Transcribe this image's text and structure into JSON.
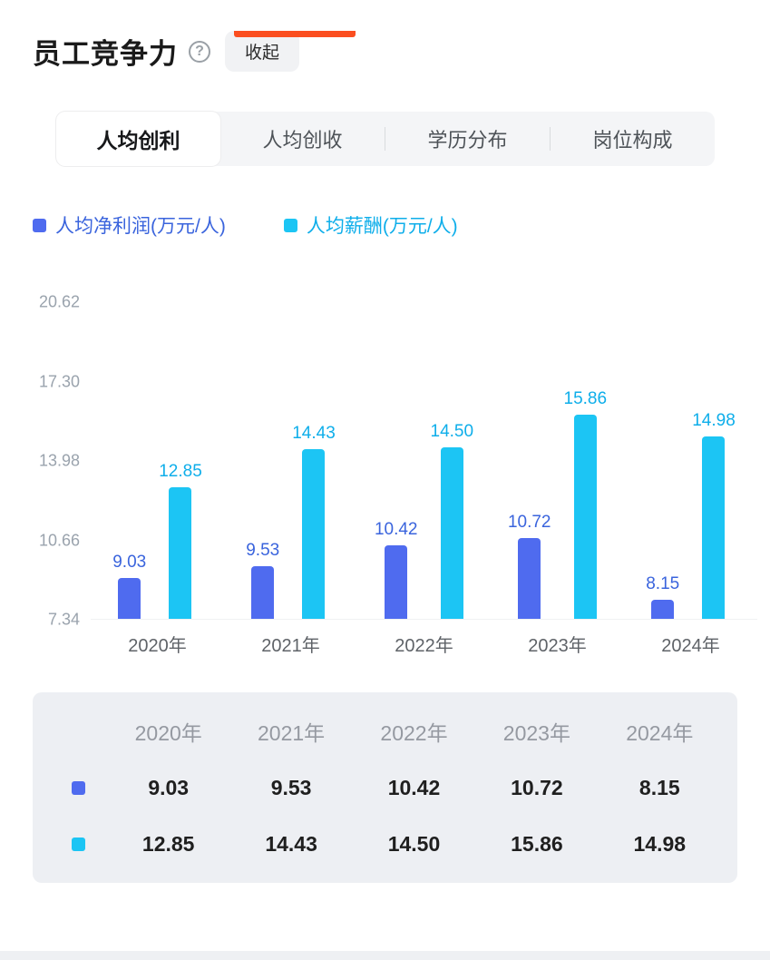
{
  "colors": {
    "accent_orange": "#fb4e1f",
    "series_blue": "#4f6bef",
    "series_blue_text": "#3a64dd",
    "series_cyan": "#1cc5f4",
    "series_cyan_text": "#0eaeea"
  },
  "icons": {
    "help": "?"
  },
  "header": {
    "title": "员工竞争力",
    "collapse_label": "收起"
  },
  "tabs": [
    {
      "label": "人均创利",
      "active": true
    },
    {
      "label": "人均创收",
      "active": false
    },
    {
      "label": "学历分布",
      "active": false
    },
    {
      "label": "岗位构成",
      "active": false
    }
  ],
  "legend": [
    {
      "label": "人均净利润(万元/人)"
    },
    {
      "label": "人均薪酬(万元/人)"
    }
  ],
  "chart_data": {
    "type": "bar",
    "title": "人均创利",
    "categories": [
      "2020年",
      "2021年",
      "2022年",
      "2023年",
      "2024年"
    ],
    "series": [
      {
        "name": "人均净利润(万元/人)",
        "color": "#4f6bef",
        "label_color": "#3a64dd",
        "values": [
          9.03,
          9.53,
          10.42,
          10.72,
          8.15
        ]
      },
      {
        "name": "人均薪酬(万元/人)",
        "color": "#1cc5f4",
        "label_color": "#0eaeea",
        "values": [
          12.85,
          14.43,
          14.5,
          15.86,
          14.98
        ]
      }
    ],
    "y_ticks": [
      20.62,
      17.3,
      13.98,
      10.66,
      7.34
    ],
    "ylim": [
      7.34,
      20.62
    ],
    "xlabel": "",
    "ylabel": "",
    "grid": false,
    "legend_position": "top"
  },
  "table": {
    "columns": [
      "2020年",
      "2021年",
      "2022年",
      "2023年",
      "2024年"
    ],
    "rows": [
      {
        "series": "人均净利润(万元/人)",
        "values": [
          "9.03",
          "9.53",
          "10.42",
          "10.72",
          "8.15"
        ]
      },
      {
        "series": "人均薪酬(万元/人)",
        "values": [
          "12.85",
          "14.43",
          "14.50",
          "15.86",
          "14.98"
        ]
      }
    ]
  }
}
